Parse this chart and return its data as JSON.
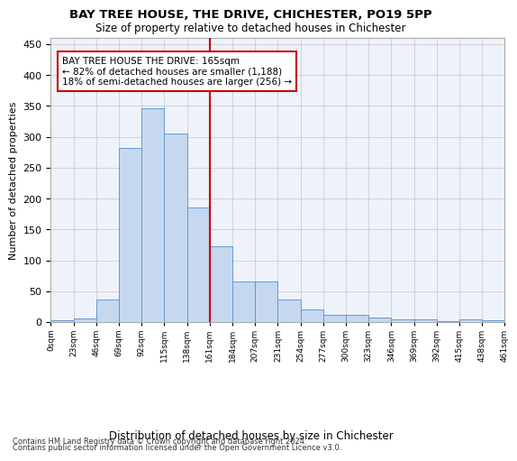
{
  "title1": "BAY TREE HOUSE, THE DRIVE, CHICHESTER, PO19 5PP",
  "title2": "Size of property relative to detached houses in Chichester",
  "xlabel": "Distribution of detached houses by size in Chichester",
  "ylabel": "Number of detached properties",
  "bar_values": [
    3,
    6,
    36,
    282,
    346,
    305,
    185,
    123,
    65,
    65,
    37,
    20,
    11,
    11,
    7,
    5,
    5,
    2,
    5,
    3
  ],
  "bar_labels": [
    "0sqm",
    "23sqm",
    "46sqm",
    "69sqm",
    "92sqm",
    "115sqm",
    "138sqm",
    "161sqm",
    "184sqm",
    "207sqm",
    "231sqm",
    "254sqm",
    "277sqm",
    "300sqm",
    "323sqm",
    "346sqm",
    "369sqm",
    "392sqm",
    "415sqm",
    "438sqm",
    "461sqm"
  ],
  "bar_color": "#c5d8f0",
  "bar_edge_color": "#6699cc",
  "vline_x": 7,
  "vline_color": "#cc0000",
  "annotation_line1": "BAY TREE HOUSE THE DRIVE: 165sqm",
  "annotation_line2": "← 82% of detached houses are smaller (1,188)",
  "annotation_line3": "18% of semi-detached houses are larger (256) →",
  "annotation_box_color": "#cc0000",
  "ylim": [
    0,
    460
  ],
  "yticks": [
    0,
    50,
    100,
    150,
    200,
    250,
    300,
    350,
    400,
    450
  ],
  "footer1": "Contains HM Land Registry data © Crown copyright and database right 2024.",
  "footer2": "Contains public sector information licensed under the Open Government Licence v3.0.",
  "bg_color": "#eef2fb"
}
